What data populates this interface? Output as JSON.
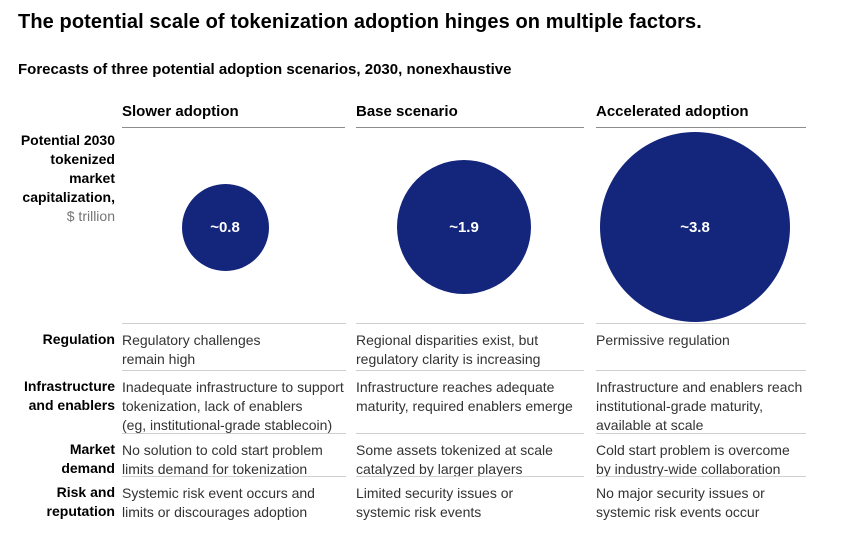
{
  "page": {
    "title": "The potential scale of tokenization adoption hinges on multiple factors.",
    "subtitle": "Forecasts of three potential adoption scenarios, 2030, nonexhaustive"
  },
  "measure_label": {
    "main": "Potential 2030\ntokenized\nmarket\ncapitalization,",
    "unit": "$ trillion"
  },
  "scenarios": [
    {
      "label": "Slower adoption",
      "value": 0.8,
      "value_label": "~0.8"
    },
    {
      "label": "Base scenario",
      "value": 1.9,
      "value_label": "~1.9"
    },
    {
      "label": "Accelerated adoption",
      "value": 3.8,
      "value_label": "~3.8"
    }
  ],
  "factors": [
    {
      "label": "Regulation",
      "cells": [
        "Regulatory challenges\nremain high",
        "Regional disparities exist, but\nregulatory clarity is increasing",
        "Permissive regulation"
      ]
    },
    {
      "label": "Infrastructure\nand enablers",
      "cells": [
        "Inadequate infrastructure to support\ntokenization, lack of enablers\n(eg, institutional-grade stablecoin)",
        "Infrastructure reaches adequate\nmaturity, required enablers emerge",
        "Infrastructure and enablers reach\ninstitutional-grade maturity,\navailable at scale"
      ]
    },
    {
      "label": "Market\ndemand",
      "cells": [
        "No solution to cold start problem\nlimits demand for tokenization",
        "Some assets tokenized at scale\ncatalyzed by larger players",
        "Cold start problem is overcome\nby industry-wide collaboration"
      ]
    },
    {
      "label": "Risk and\nreputation",
      "cells": [
        "Systemic risk event occurs and\nlimits or discourages adoption",
        "Limited security issues or\nsystemic risk events",
        "No major security issues or\nsystemic risk events occur"
      ]
    }
  ],
  "colors": {
    "bubble": "#14257c",
    "header_rule": "#8c8c8c",
    "row_rule": "#cfcfcf",
    "cell_text": "#333333",
    "muted_text": "#757575"
  },
  "chart_data": [
    {
      "type": "scatter",
      "subtype": "bubble",
      "title": "The potential scale of tokenization adoption hinges on multiple factors.",
      "subtitle": "Forecasts of three potential adoption scenarios, 2030, nonexhaustive",
      "measure": "Potential 2030 tokenized market capitalization, $ trillion",
      "categories": [
        "Slower adoption",
        "Base scenario",
        "Accelerated adoption"
      ],
      "values": [
        0.8,
        1.9,
        3.8
      ],
      "value_labels": [
        "~0.8",
        "~1.9",
        "~3.8"
      ],
      "bubble_color": "#14257c",
      "layout": "three bubbles in a row, area proportional to value, value label centered in white"
    },
    {
      "type": "table",
      "columns": [
        "Slower adoption",
        "Base scenario",
        "Accelerated adoption"
      ],
      "row_headers": [
        "Regulation",
        "Infrastructure and enablers",
        "Market demand",
        "Risk and reputation"
      ],
      "cells": [
        [
          "Regulatory challenges remain high",
          "Regional disparities exist, but regulatory clarity is increasing",
          "Permissive regulation"
        ],
        [
          "Inadequate infrastructure to support tokenization, lack of enablers (eg, institutional-grade stablecoin)",
          "Infrastructure reaches adequate maturity, required enablers emerge",
          "Infrastructure and enablers reach institutional-grade maturity, available at scale"
        ],
        [
          "No solution to cold start problem limits demand for tokenization",
          "Some assets tokenized at scale catalyzed by larger players",
          "Cold start problem is overcome by industry-wide collaboration"
        ],
        [
          "Systemic risk event occurs and limits or discourages adoption",
          "Limited security issues or systemic risk events",
          "No major security issues or systemic risk events occur"
        ]
      ]
    }
  ]
}
